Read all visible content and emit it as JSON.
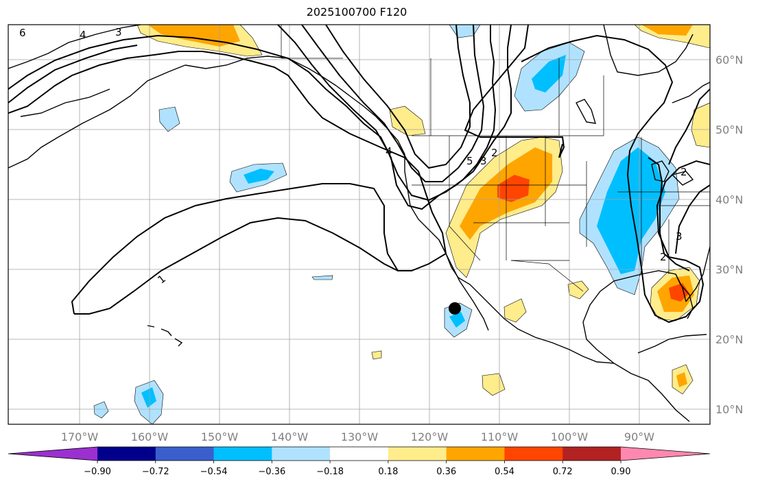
{
  "title": "2025100700 F120",
  "x_axis": {
    "ticks": [
      "170°W",
      "160°W",
      "150°W",
      "140°W",
      "130°W",
      "120°W",
      "110°W",
      "100°W",
      "90°W"
    ]
  },
  "y_axis": {
    "ticks": [
      "60°N",
      "50°N",
      "40°N",
      "30°N",
      "20°N",
      "10°N"
    ]
  },
  "colorbar": {
    "labels": [
      "−0.90",
      "−0.72",
      "−0.54",
      "−0.36",
      "−0.18",
      "0.18",
      "0.36",
      "0.54",
      "0.72",
      "0.90"
    ],
    "colors": [
      "#9b30d0",
      "#00008b",
      "#3a5fcd",
      "#00bfff",
      "#b0e2ff",
      "#ffffff",
      "#ffec8b",
      "#ffa500",
      "#ff4500",
      "#b22222",
      "#ff88b0"
    ]
  },
  "contour_labels": [
    "6",
    "4",
    "3",
    "1",
    "4",
    "5",
    "3",
    "2",
    "2",
    "3",
    "2"
  ],
  "marker": {
    "name": "black-dot"
  },
  "chart_data": {
    "type": "heatmap",
    "title": "2025100700 F120",
    "x_ticks": [
      "170°W",
      "160°W",
      "150°W",
      "140°W",
      "130°W",
      "120°W",
      "110°W",
      "100°W",
      "90°W"
    ],
    "y_ticks": [
      "60°N",
      "50°N",
      "40°N",
      "30°N",
      "20°N",
      "10°N"
    ],
    "levels": [
      -0.9,
      -0.72,
      -0.54,
      -0.36,
      -0.18,
      0.18,
      0.36,
      0.54,
      0.72,
      0.9
    ],
    "grid": true,
    "colorbar": "bottom, horizontal, extended both ends"
  }
}
